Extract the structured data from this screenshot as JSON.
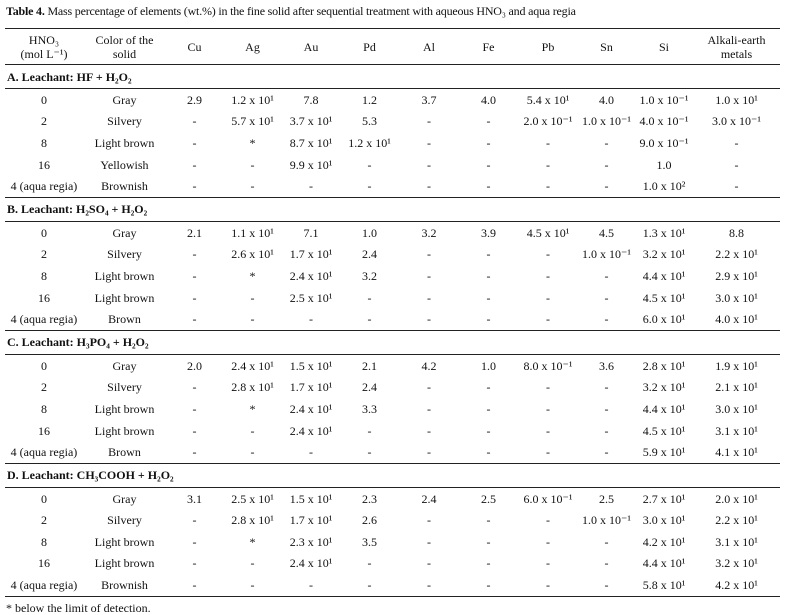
{
  "caption": {
    "label": "Table 4.",
    "text": "Mass percentage of elements (wt.%) in the fine solid after sequential treatment with aqueous HNO₃ and aqua regia"
  },
  "columns": [
    "HNO₃\n(mol L⁻¹)",
    "Color of the\nsolid",
    "Cu",
    "Ag",
    "Au",
    "Pd",
    "Al",
    "Fe",
    "Pb",
    "Sn",
    "Si",
    "Alkali-earth\nmetals"
  ],
  "sections": [
    {
      "title": "A. Leachant: HF + H₂O₂",
      "rows": [
        [
          "0",
          "Gray",
          "2.9",
          "1.2 x 10¹",
          "7.8",
          "1.2",
          "3.7",
          "4.0",
          "5.4 x 10¹",
          "4.0",
          "1.0 x 10⁻¹",
          "1.0 x 10¹"
        ],
        [
          "2",
          "Silvery",
          "-",
          "5.7 x 10¹",
          "3.7 x 10¹",
          "5.3",
          "-",
          "-",
          "2.0 x 10⁻¹",
          "1.0 x 10⁻¹",
          "4.0 x 10⁻¹",
          "3.0 x 10⁻¹"
        ],
        [
          "8",
          "Light brown",
          "-",
          "*",
          "8.7 x 10¹",
          "1.2 x 10¹",
          "-",
          "-",
          "-",
          "-",
          "9.0 x 10⁻¹",
          "-"
        ],
        [
          "16",
          "Yellowish",
          "-",
          "-",
          "9.9 x 10¹",
          "-",
          "-",
          "-",
          "-",
          "-",
          "1.0",
          "-"
        ],
        [
          "4 (aqua regia)",
          "Brownish",
          "-",
          "-",
          "-",
          "-",
          "-",
          "-",
          "-",
          "-",
          "1.0 x 10²",
          "-"
        ]
      ]
    },
    {
      "title": "B. Leachant: H₂SO₄ + H₂O₂",
      "rows": [
        [
          "0",
          "Gray",
          "2.1",
          "1.1 x 10¹",
          "7.1",
          "1.0",
          "3.2",
          "3.9",
          "4.5 x 10¹",
          "4.5",
          "1.3 x 10¹",
          "8.8"
        ],
        [
          "2",
          "Silvery",
          "-",
          "2.6 x 10¹",
          "1.7 x 10¹",
          "2.4",
          "-",
          "-",
          "-",
          "1.0 x 10⁻¹",
          "3.2 x 10¹",
          "2.2 x 10¹"
        ],
        [
          "8",
          "Light brown",
          "-",
          "*",
          "2.4 x 10¹",
          "3.2",
          "-",
          "-",
          "-",
          "-",
          "4.4 x 10¹",
          "2.9 x 10¹"
        ],
        [
          "16",
          "Light brown",
          "-",
          "-",
          "2.5 x 10¹",
          "-",
          "-",
          "-",
          "-",
          "-",
          "4.5 x 10¹",
          "3.0 x 10¹"
        ],
        [
          "4 (aqua regia)",
          "Brown",
          "-",
          "-",
          "-",
          "-",
          "-",
          "-",
          "-",
          "-",
          "6.0 x 10¹",
          "4.0 x 10¹"
        ]
      ]
    },
    {
      "title": "C. Leachant: H₃PO₄ + H₂O₂",
      "rows": [
        [
          "0",
          "Gray",
          "2.0",
          "2.4 x 10¹",
          "1.5 x 10¹",
          "2.1",
          "4.2",
          "1.0",
          "8.0 x 10⁻¹",
          "3.6",
          "2.8 x 10¹",
          "1.9 x 10¹"
        ],
        [
          "2",
          "Silvery",
          "-",
          "2.8 x 10¹",
          "1.7 x 10¹",
          "2.4",
          "-",
          "-",
          "-",
          "-",
          "3.2 x 10¹",
          "2.1 x 10¹"
        ],
        [
          "8",
          "Light brown",
          "-",
          "*",
          "2.4 x 10¹",
          "3.3",
          "-",
          "-",
          "-",
          "-",
          "4.4 x 10¹",
          "3.0 x 10¹"
        ],
        [
          "16",
          "Light brown",
          "-",
          "-",
          "2.4 x 10¹",
          "-",
          "-",
          "-",
          "-",
          "-",
          "4.5 x 10¹",
          "3.1 x 10¹"
        ],
        [
          "4 (aqua regia)",
          "Brown",
          "-",
          "-",
          "-",
          "-",
          "-",
          "-",
          "-",
          "-",
          "5.9 x 10¹",
          "4.1 x 10¹"
        ]
      ]
    },
    {
      "title": "D. Leachant: CH₃COOH + H₂O₂",
      "rows": [
        [
          "0",
          "Gray",
          "3.1",
          "2.5 x 10¹",
          "1.5 x 10¹",
          "2.3",
          "2.4",
          "2.5",
          "6.0 x 10⁻¹",
          "2.5",
          "2.7 x 10¹",
          "2.0 x 10¹"
        ],
        [
          "2",
          "Silvery",
          "-",
          "2.8 x 10¹",
          "1.7 x 10¹",
          "2.6",
          "-",
          "-",
          "-",
          "1.0 x 10⁻¹",
          "3.0 x 10¹",
          "2.2 x 10¹"
        ],
        [
          "8",
          "Light brown",
          "-",
          "*",
          "2.3 x 10¹",
          "3.5",
          "-",
          "-",
          "-",
          "-",
          "4.2 x 10¹",
          "3.1 x 10¹"
        ],
        [
          "16",
          "Light brown",
          "-",
          "-",
          "2.4 x 10¹",
          "-",
          "-",
          "-",
          "-",
          "-",
          "4.4 x 10¹",
          "3.2 x 10¹"
        ],
        [
          "4 (aqua regia)",
          "Brownish",
          "-",
          "-",
          "-",
          "-",
          "-",
          "-",
          "-",
          "-",
          "5.8 x 10¹",
          "4.2 x 10¹"
        ]
      ]
    }
  ],
  "footnote": "* below the limit of detection."
}
